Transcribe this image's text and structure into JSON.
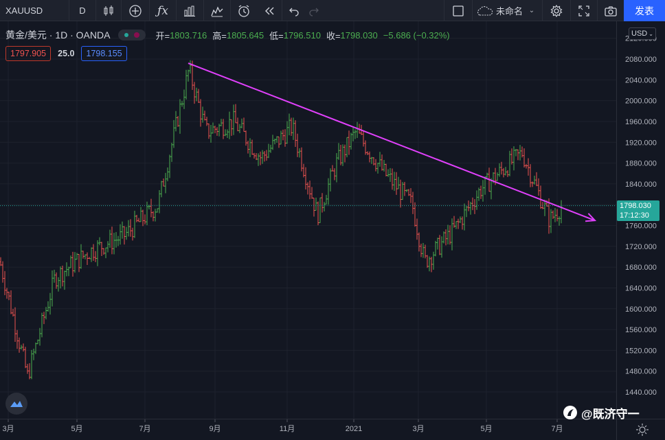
{
  "toolbar": {
    "symbol": "XAUUSD",
    "interval": "D",
    "unnamed_label": "未命名",
    "publish_label": "发表"
  },
  "legend": {
    "title": "黄金/美元 · 1D · OANDA",
    "open_label": "开=",
    "open": "1803.716",
    "high_label": "高=",
    "high": "1805.645",
    "low_label": "低=",
    "low": "1796.510",
    "close_label": "收=",
    "close": "1798.030",
    "change": "−5.686 (−0.32%)"
  },
  "quote": {
    "sell": "1797.905",
    "spread": "25.0",
    "buy": "1798.155"
  },
  "price_axis": {
    "currency": "USD",
    "last_price": "1798.030",
    "countdown": "17:12:30"
  },
  "watermark": "@既济守一",
  "colors": {
    "background": "#131722",
    "up": "#4caf50",
    "down": "#ef5350",
    "trendline": "#e040fb",
    "price_line": "#26a69a",
    "accent": "#2962ff"
  },
  "chart_data": {
    "type": "ohlc",
    "symbol": "XAUUSD",
    "interval": "1D",
    "yaxis_ticks": [
      1440,
      1480,
      1520,
      1560,
      1600,
      1640,
      1680,
      1720,
      1760,
      1800,
      1840,
      1880,
      1920,
      1960,
      2000,
      2040,
      2080,
      2120
    ],
    "xaxis_ticks": [
      "3月",
      "5月",
      "7月",
      "9月",
      "11月",
      "2021",
      "3月",
      "5月",
      "7月"
    ],
    "ylim": [
      1400,
      2130
    ],
    "closes_by_period": [
      {
        "x": "3月",
        "close": 1690
      },
      {
        "x": "3月",
        "close": 1470
      },
      {
        "x": "4月",
        "close": 1660
      },
      {
        "x": "5月",
        "close": 1710
      },
      {
        "x": "6月",
        "close": 1740
      },
      {
        "x": "7月",
        "close": 1800
      },
      {
        "x": "8月",
        "close": 2060
      },
      {
        "x": "8月",
        "close": 1940
      },
      {
        "x": "9月",
        "close": 1960
      },
      {
        "x": "10月",
        "close": 1890
      },
      {
        "x": "11月",
        "close": 1950
      },
      {
        "x": "11月",
        "close": 1780
      },
      {
        "x": "12月",
        "close": 1880
      },
      {
        "x": "2021",
        "close": 1940
      },
      {
        "x": "1月",
        "close": 1860
      },
      {
        "x": "2月",
        "close": 1800
      },
      {
        "x": "3月",
        "close": 1690
      },
      {
        "x": "4月",
        "close": 1750
      },
      {
        "x": "5月",
        "close": 1830
      },
      {
        "x": "6月",
        "close": 1900
      },
      {
        "x": "6月",
        "close": 1770
      },
      {
        "x": "7月",
        "close": 1798
      }
    ],
    "last_close": 1798.03,
    "trendline": {
      "from": {
        "x": "8月",
        "y": 2072
      },
      "to": {
        "x": "7月",
        "y": 1775
      }
    }
  }
}
